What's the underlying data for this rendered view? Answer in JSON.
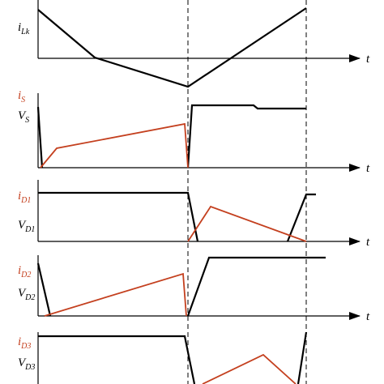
{
  "panels": [
    {
      "labels": [
        {
          "main": "i",
          "sub": "Lk"
        }
      ],
      "axis_label": "t"
    },
    {
      "labels": [
        {
          "main": "i",
          "sub": "S"
        },
        {
          "main": "V",
          "sub": "S"
        }
      ],
      "axis_label": "t"
    },
    {
      "labels": [
        {
          "main": "i",
          "sub": "D1"
        },
        {
          "main": "V",
          "sub": "D1"
        }
      ],
      "axis_label": "t"
    },
    {
      "labels": [
        {
          "main": "i",
          "sub": "D2"
        },
        {
          "main": "V",
          "sub": "D2"
        }
      ],
      "axis_label": "t"
    },
    {
      "labels": [
        {
          "main": "i",
          "sub": "D3"
        },
        {
          "main": "V",
          "sub": "D3"
        }
      ]
    }
  ]
}
